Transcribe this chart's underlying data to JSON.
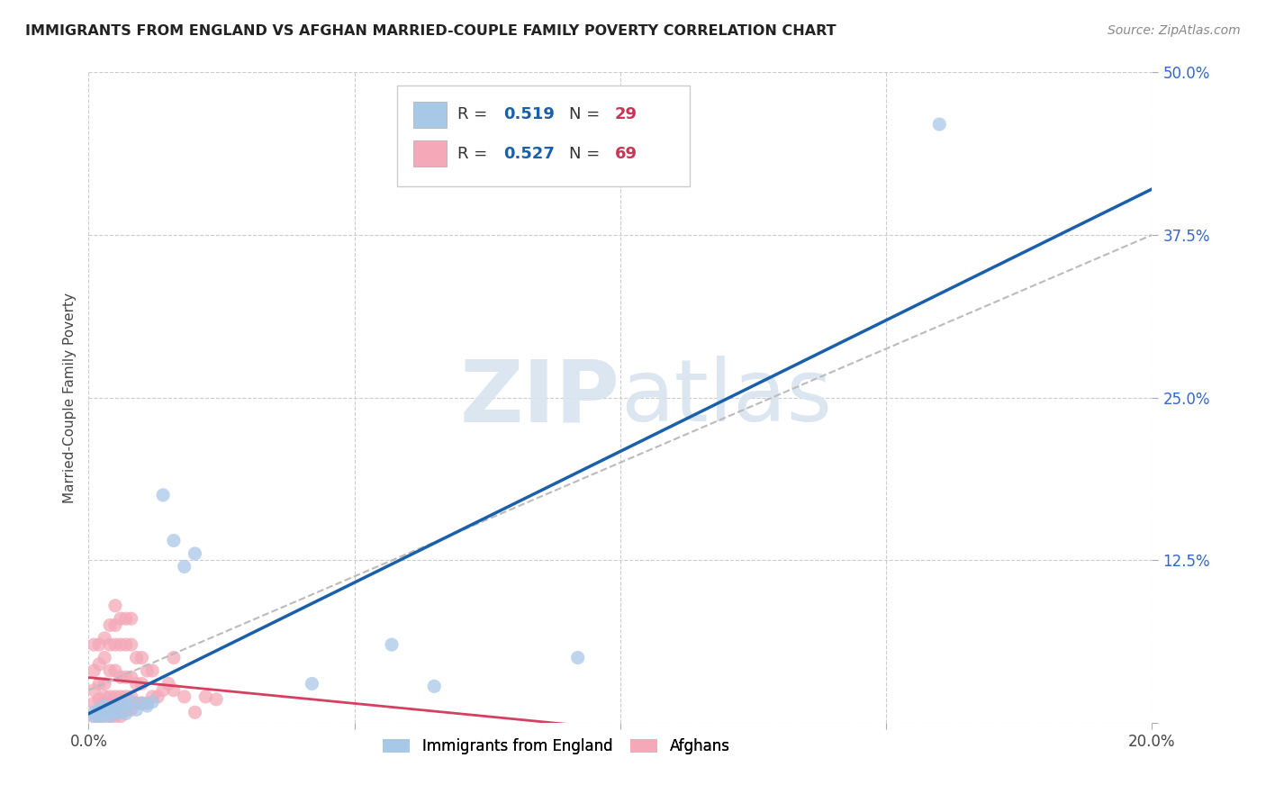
{
  "title": "IMMIGRANTS FROM ENGLAND VS AFGHAN MARRIED-COUPLE FAMILY POVERTY CORRELATION CHART",
  "source": "Source: ZipAtlas.com",
  "ylabel": "Married-Couple Family Poverty",
  "x_min": 0.0,
  "x_max": 0.2,
  "y_min": 0.0,
  "y_max": 0.5,
  "x_ticks": [
    0.0,
    0.05,
    0.1,
    0.15,
    0.2
  ],
  "x_tick_labels": [
    "0.0%",
    "",
    "",
    "",
    "20.0%"
  ],
  "y_ticks": [
    0.0,
    0.125,
    0.25,
    0.375,
    0.5
  ],
  "y_tick_labels": [
    "",
    "12.5%",
    "25.0%",
    "37.5%",
    "50.0%"
  ],
  "england_R": 0.519,
  "england_N": 29,
  "afghan_R": 0.527,
  "afghan_N": 69,
  "england_color": "#a8c8e8",
  "afghan_color": "#f4a8b8",
  "england_line_color": "#1a5faa",
  "afghan_line_color": "#d44060",
  "watermark_color": "#d8e4f0",
  "legend_color_R": "#1a5faa",
  "legend_color_N": "#cc3355",
  "england_scatter_x": [
    0.001,
    0.001,
    0.002,
    0.002,
    0.003,
    0.003,
    0.003,
    0.004,
    0.004,
    0.005,
    0.005,
    0.006,
    0.006,
    0.007,
    0.007,
    0.008,
    0.009,
    0.01,
    0.011,
    0.012,
    0.014,
    0.016,
    0.018,
    0.02,
    0.042,
    0.057,
    0.065,
    0.092,
    0.16
  ],
  "england_scatter_y": [
    0.005,
    0.008,
    0.004,
    0.01,
    0.006,
    0.01,
    0.013,
    0.005,
    0.01,
    0.008,
    0.012,
    0.008,
    0.014,
    0.007,
    0.014,
    0.016,
    0.01,
    0.015,
    0.013,
    0.016,
    0.175,
    0.14,
    0.12,
    0.13,
    0.03,
    0.06,
    0.028,
    0.05,
    0.46
  ],
  "afghan_scatter_x": [
    0.001,
    0.001,
    0.001,
    0.001,
    0.001,
    0.002,
    0.002,
    0.002,
    0.002,
    0.002,
    0.002,
    0.003,
    0.003,
    0.003,
    0.003,
    0.003,
    0.003,
    0.003,
    0.004,
    0.004,
    0.004,
    0.004,
    0.004,
    0.004,
    0.004,
    0.005,
    0.005,
    0.005,
    0.005,
    0.005,
    0.005,
    0.005,
    0.005,
    0.006,
    0.006,
    0.006,
    0.006,
    0.006,
    0.006,
    0.006,
    0.007,
    0.007,
    0.007,
    0.007,
    0.007,
    0.008,
    0.008,
    0.008,
    0.008,
    0.008,
    0.009,
    0.009,
    0.009,
    0.01,
    0.01,
    0.01,
    0.011,
    0.011,
    0.012,
    0.012,
    0.013,
    0.014,
    0.015,
    0.016,
    0.016,
    0.018,
    0.02,
    0.022,
    0.024
  ],
  "afghan_scatter_y": [
    0.005,
    0.015,
    0.025,
    0.04,
    0.06,
    0.005,
    0.01,
    0.018,
    0.03,
    0.045,
    0.06,
    0.005,
    0.01,
    0.015,
    0.02,
    0.03,
    0.05,
    0.065,
    0.005,
    0.01,
    0.015,
    0.02,
    0.04,
    0.06,
    0.075,
    0.005,
    0.01,
    0.015,
    0.02,
    0.04,
    0.06,
    0.075,
    0.09,
    0.005,
    0.01,
    0.015,
    0.02,
    0.035,
    0.06,
    0.08,
    0.01,
    0.02,
    0.035,
    0.06,
    0.08,
    0.01,
    0.02,
    0.035,
    0.06,
    0.08,
    0.015,
    0.03,
    0.05,
    0.015,
    0.03,
    0.05,
    0.015,
    0.04,
    0.02,
    0.04,
    0.02,
    0.025,
    0.03,
    0.025,
    0.05,
    0.02,
    0.008,
    0.02,
    0.018
  ]
}
